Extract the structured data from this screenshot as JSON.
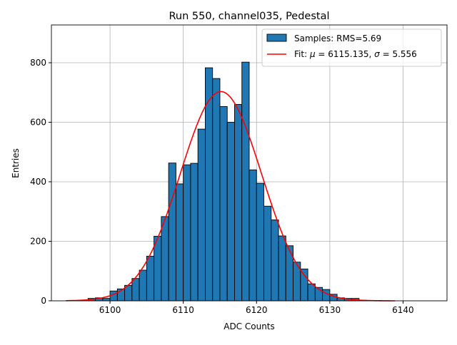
{
  "chart_data": {
    "type": "bar",
    "title": "Run 550, channel035, Pedestal",
    "xlabel": "ADC Counts",
    "ylabel": "Entries",
    "xlim": [
      6092,
      6146
    ],
    "ylim": [
      0,
      927
    ],
    "grid": true,
    "legend_position": "top-right",
    "x_ticks": [
      6100,
      6110,
      6120,
      6130,
      6140
    ],
    "y_ticks": [
      0,
      200,
      400,
      600,
      800
    ],
    "bin_width": 1,
    "bins": [
      6097,
      6098,
      6099,
      6100,
      6101,
      6102,
      6103,
      6104,
      6105,
      6106,
      6107,
      6108,
      6109,
      6110,
      6111,
      6112,
      6113,
      6114,
      6115,
      6116,
      6117,
      6118,
      6119,
      6120,
      6121,
      6122,
      6123,
      6124,
      6125,
      6126,
      6127,
      6128,
      6129,
      6130,
      6131,
      6132,
      6133,
      6134,
      6135,
      6136
    ],
    "values": [
      8,
      10,
      8,
      33,
      40,
      52,
      75,
      103,
      150,
      217,
      283,
      463,
      393,
      457,
      462,
      577,
      783,
      747,
      653,
      600,
      660,
      802,
      440,
      395,
      318,
      272,
      218,
      185,
      130,
      107,
      57,
      45,
      38,
      22,
      10,
      8,
      8,
      2,
      1,
      1
    ],
    "series": [
      {
        "name": "Samples: RMS=5.69",
        "type": "histogram",
        "color": "#1f77b4"
      },
      {
        "name": "Fit: μ = 6115.135, σ = 5.556",
        "type": "line",
        "color": "#ff0000",
        "mu": 6115.135,
        "sigma": 5.556,
        "amplitude": 703,
        "x_range": [
          6094,
          6139
        ]
      }
    ],
    "legend": {
      "hist_prefix": "Samples: RMS=5.69",
      "fit_prefix": "Fit: ",
      "mu_sym": "μ",
      "mu_val": " = 6115.135, ",
      "sigma_sym": "σ",
      "sigma_val": " = 5.556"
    }
  }
}
